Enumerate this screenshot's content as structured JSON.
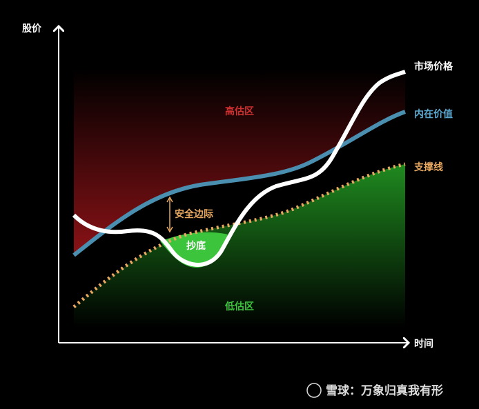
{
  "axes": {
    "y_label": "股价",
    "x_label": "时间"
  },
  "lines": [
    {
      "label": "市场价格"
    },
    {
      "label": "内在价值"
    },
    {
      "label": "支撑线"
    }
  ],
  "zones": {
    "overvalued": "高估区",
    "undervalued": "低估区",
    "margin": "安全边际",
    "bottom": "抄底"
  },
  "watermark": "雪球：万象归真我有形"
}
